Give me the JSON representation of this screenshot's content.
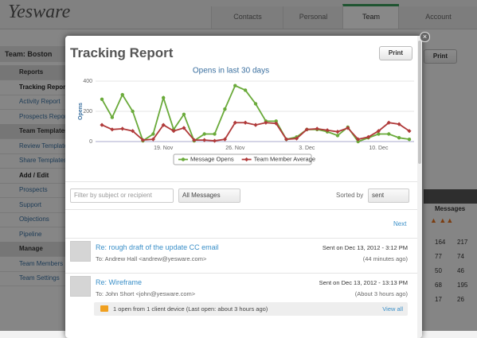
{
  "app": {
    "logo": "Yesware",
    "tabs": [
      "Contacts",
      "Personal",
      "Team",
      "Account"
    ]
  },
  "sidebar": {
    "team": "Team: Boston",
    "groups": [
      {
        "title": "Reports",
        "items": [
          "Tracking Report",
          "Activity Report",
          "Prospects Report"
        ]
      },
      {
        "title": "Team Templates",
        "items": [
          "Review Templates",
          "Share Templates",
          "Add / Edit"
        ]
      },
      {
        "items": [
          "Prospects",
          "Support",
          "Objections",
          "Pipeline"
        ]
      },
      {
        "title": "Manage",
        "items": [
          "Team Members",
          "Team Settings"
        ]
      }
    ]
  },
  "background": {
    "print": "Print",
    "table_header": "Messages",
    "rows": [
      [
        164,
        217
      ],
      [
        77,
        74
      ],
      [
        50,
        46
      ],
      [
        68,
        195
      ],
      [
        17,
        26
      ]
    ]
  },
  "modal": {
    "title": "Tracking Report",
    "print": "Print",
    "filter_placeholder": "Filter by subject or recipient",
    "message_filter": "All Messages",
    "sort_label": "Sorted by",
    "sort_value": "sent",
    "next": "Next",
    "emails": [
      {
        "subject": "Re: rough draft of the update CC email",
        "to": "To: Andrew Hall <andrew@yesware.com>",
        "sent": "Sent on Dec 13, 2012 - 3:12 PM",
        "ago": "(44 minutes ago)"
      },
      {
        "subject": "Re: Wireframe",
        "to": "To: John Short <john@yesware.com>",
        "sent": "Sent on Dec 13, 2012 - 13:13 PM",
        "ago": "(About 3 hours ago)"
      }
    ],
    "open_summary": "1 open from 1 client device (Last open: about 3 hours ago)",
    "view_all": "View all"
  },
  "chart_data": {
    "type": "line",
    "title": "Opens in last 30 days",
    "y_label": "Opens",
    "categories": [
      null,
      null,
      null,
      null,
      null,
      null,
      "19. Nov",
      null,
      null,
      null,
      null,
      null,
      null,
      "26. Nov",
      null,
      null,
      null,
      null,
      null,
      null,
      "3. Dec",
      null,
      null,
      null,
      null,
      null,
      null,
      "10. Dec",
      null,
      null,
      null
    ],
    "series": [
      {
        "name": "Message Opens",
        "color": "#6aaa3a",
        "values": [
          280,
          160,
          310,
          200,
          5,
          50,
          290,
          80,
          180,
          5,
          50,
          50,
          215,
          370,
          340,
          250,
          135,
          135,
          15,
          30,
          80,
          80,
          65,
          40,
          95,
          0,
          25,
          50,
          50,
          25,
          15
        ]
      },
      {
        "name": "Team Member Average",
        "color": "#b03a3a",
        "values": [
          110,
          80,
          85,
          70,
          10,
          15,
          110,
          70,
          90,
          10,
          10,
          5,
          15,
          125,
          125,
          110,
          125,
          120,
          15,
          20,
          80,
          85,
          75,
          65,
          90,
          15,
          30,
          70,
          125,
          115,
          70
        ]
      }
    ],
    "ylim": [
      0,
      400
    ],
    "yticks": [
      0,
      200,
      400
    ],
    "grid": true,
    "legend": "bottom"
  }
}
